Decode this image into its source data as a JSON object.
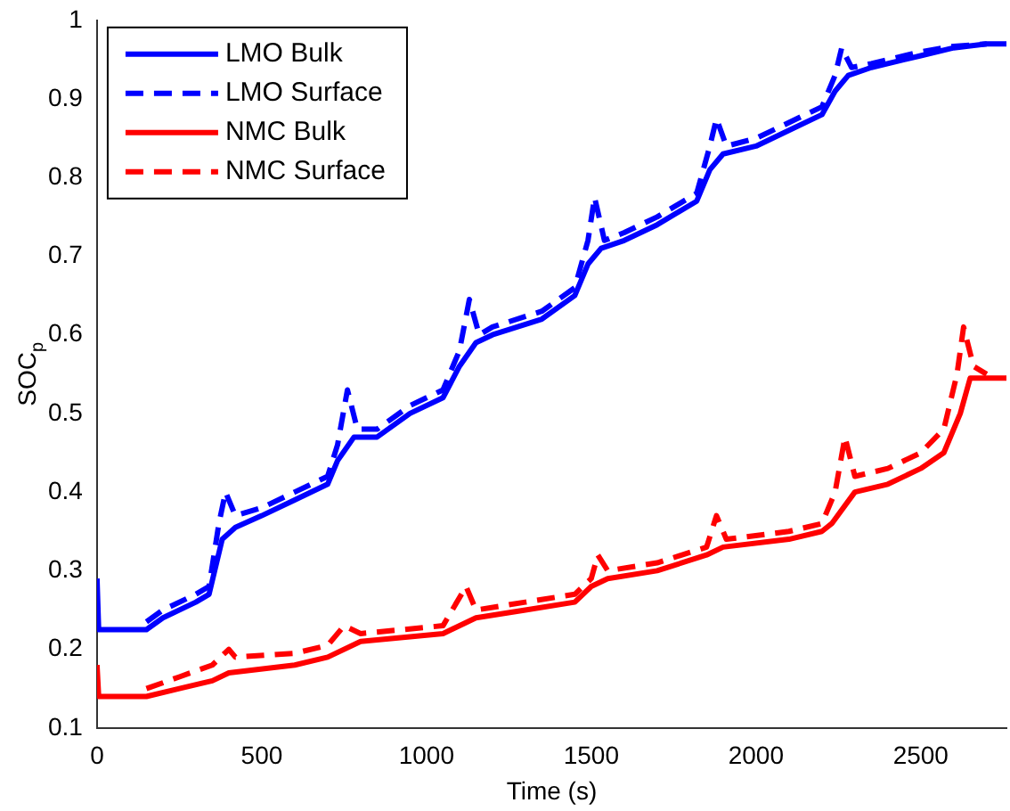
{
  "chart_data": {
    "type": "line",
    "xlabel": "Time (s)",
    "ylabel": "SOC$_{p}$",
    "xlim": [
      0,
      2760
    ],
    "ylim": [
      0.1,
      1
    ],
    "xticks": [
      0,
      500,
      1000,
      1500,
      2000,
      2500
    ],
    "yticks": [
      0.1,
      0.2,
      0.3,
      0.4,
      0.5,
      0.6,
      0.7,
      0.8,
      0.9,
      1
    ],
    "grid": false,
    "legend": "top left",
    "marker": "none",
    "series": [
      {
        "name": "LMO Bulk",
        "color": "#0000ff",
        "line_style": "solid",
        "x": [
          0,
          5,
          150,
          200,
          300,
          340,
          380,
          420,
          500,
          600,
          700,
          730,
          780,
          850,
          950,
          1050,
          1100,
          1150,
          1200,
          1350,
          1450,
          1490,
          1530,
          1600,
          1700,
          1820,
          1860,
          1900,
          2000,
          2100,
          2200,
          2240,
          2280,
          2350,
          2500,
          2600,
          2700,
          2760
        ],
        "values": [
          0.29,
          0.225,
          0.225,
          0.24,
          0.26,
          0.27,
          0.34,
          0.355,
          0.37,
          0.39,
          0.41,
          0.44,
          0.47,
          0.47,
          0.5,
          0.52,
          0.56,
          0.59,
          0.6,
          0.62,
          0.65,
          0.69,
          0.71,
          0.72,
          0.74,
          0.77,
          0.81,
          0.83,
          0.84,
          0.86,
          0.88,
          0.91,
          0.93,
          0.94,
          0.955,
          0.965,
          0.97,
          0.97
        ]
      },
      {
        "name": "LMO Surface",
        "color": "#0000ff",
        "line_style": "dashed",
        "x": [
          150,
          200,
          300,
          340,
          370,
          390,
          420,
          500,
          600,
          700,
          730,
          760,
          790,
          850,
          950,
          1050,
          1100,
          1130,
          1160,
          1200,
          1350,
          1450,
          1490,
          1510,
          1540,
          1600,
          1700,
          1820,
          1860,
          1880,
          1910,
          2000,
          2100,
          2200,
          2240,
          2260,
          2290,
          2350,
          2500,
          2600,
          2700
        ],
        "values": [
          0.235,
          0.25,
          0.27,
          0.28,
          0.36,
          0.4,
          0.37,
          0.38,
          0.4,
          0.42,
          0.46,
          0.53,
          0.48,
          0.48,
          0.51,
          0.53,
          0.58,
          0.645,
          0.6,
          0.61,
          0.63,
          0.66,
          0.72,
          0.775,
          0.72,
          0.73,
          0.75,
          0.78,
          0.84,
          0.875,
          0.84,
          0.85,
          0.87,
          0.89,
          0.93,
          0.965,
          0.94,
          0.945,
          0.96,
          0.967,
          0.97
        ]
      },
      {
        "name": "NMC Bulk",
        "color": "#ff0000",
        "line_style": "solid",
        "x": [
          0,
          5,
          150,
          250,
          350,
          400,
          600,
          700,
          800,
          1050,
          1150,
          1300,
          1450,
          1500,
          1550,
          1700,
          1850,
          1900,
          2100,
          2200,
          2230,
          2300,
          2400,
          2500,
          2570,
          2620,
          2650,
          2760
        ],
        "values": [
          0.18,
          0.14,
          0.14,
          0.15,
          0.16,
          0.17,
          0.18,
          0.19,
          0.21,
          0.22,
          0.24,
          0.25,
          0.26,
          0.28,
          0.29,
          0.3,
          0.32,
          0.33,
          0.34,
          0.35,
          0.36,
          0.4,
          0.41,
          0.43,
          0.45,
          0.5,
          0.545,
          0.545
        ]
      },
      {
        "name": "NMC Surface",
        "color": "#ff0000",
        "line_style": "dashed",
        "x": [
          150,
          250,
          350,
          400,
          420,
          600,
          700,
          750,
          800,
          1050,
          1120,
          1150,
          1300,
          1450,
          1500,
          1520,
          1550,
          1700,
          1850,
          1880,
          1910,
          2100,
          2200,
          2240,
          2270,
          2300,
          2400,
          2500,
          2570,
          2610,
          2630,
          2660,
          2700
        ],
        "values": [
          0.15,
          0.165,
          0.18,
          0.2,
          0.19,
          0.195,
          0.205,
          0.23,
          0.22,
          0.23,
          0.28,
          0.25,
          0.26,
          0.27,
          0.29,
          0.32,
          0.3,
          0.31,
          0.33,
          0.37,
          0.34,
          0.35,
          0.36,
          0.4,
          0.47,
          0.42,
          0.43,
          0.45,
          0.48,
          0.55,
          0.61,
          0.56,
          0.55
        ]
      }
    ]
  }
}
